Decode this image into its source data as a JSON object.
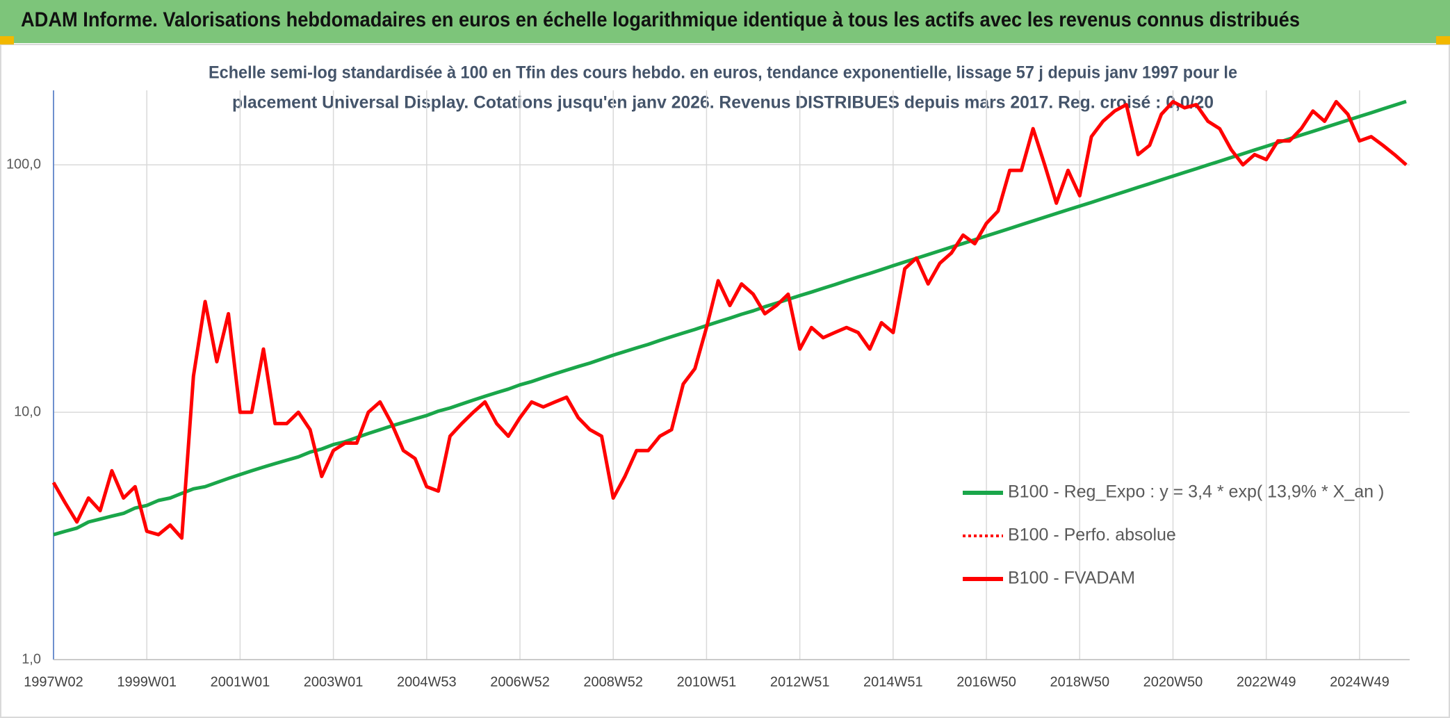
{
  "title": "ADAM Informe. Valorisations hebdomadaires en euros en échelle logarithmique identique à tous les actifs avec les revenus connus distribués",
  "chart_data": {
    "type": "line",
    "subtitle": [
      "Echelle semi-log standardisée à 100 en Tfin des cours hebdo. en euros, tendance exponentielle, lissage 57 j depuis janv 1997 pour le",
      "placement Universal Display. Cotations jusqu'en janv 2026. Revenus DISTRIBUES depuis mars 2017. Reg. croisé : 0,0/20"
    ],
    "log_scale": true,
    "grid": true,
    "ylim": [
      1,
      200
    ],
    "yticks": [
      {
        "value": 1,
        "label": "1,0"
      },
      {
        "value": 10,
        "label": "10,0"
      },
      {
        "value": 100,
        "label": "100,0"
      }
    ],
    "categories": [
      "1997W02",
      null,
      null,
      null,
      null,
      null,
      null,
      null,
      "1999W01",
      null,
      null,
      null,
      null,
      null,
      null,
      null,
      "2001W01",
      null,
      null,
      null,
      null,
      null,
      null,
      null,
      "2003W01",
      null,
      null,
      null,
      null,
      null,
      null,
      null,
      "2004W53",
      null,
      null,
      null,
      null,
      null,
      null,
      null,
      "2006W52",
      null,
      null,
      null,
      null,
      null,
      null,
      null,
      "2008W52",
      null,
      null,
      null,
      null,
      null,
      null,
      null,
      "2010W51",
      null,
      null,
      null,
      null,
      null,
      null,
      null,
      "2012W51",
      null,
      null,
      null,
      null,
      null,
      null,
      null,
      "2014W51",
      null,
      null,
      null,
      null,
      null,
      null,
      null,
      "2016W50",
      null,
      null,
      null,
      null,
      null,
      null,
      null,
      "2018W50",
      null,
      null,
      null,
      null,
      null,
      null,
      null,
      "2020W50",
      null,
      null,
      null,
      null,
      null,
      null,
      null,
      "2022W49",
      null,
      null,
      null,
      null,
      null,
      null,
      null,
      "2024W49",
      null,
      null,
      null,
      null
    ],
    "series": [
      {
        "name": "B100 - Reg_Expo : y = 3,4 * exp( 13,9% *  X_an )",
        "color": "#1aa64a",
        "style": "solid",
        "values": [
          3.2,
          3.3,
          3.4,
          3.6,
          3.7,
          3.8,
          3.9,
          4.1,
          4.2,
          4.4,
          4.5,
          4.7,
          4.9,
          5.0,
          5.2,
          5.4,
          5.6,
          5.8,
          6.0,
          6.2,
          6.4,
          6.6,
          6.9,
          7.1,
          7.4,
          7.6,
          7.9,
          8.2,
          8.5,
          8.8,
          9.1,
          9.4,
          9.7,
          10.1,
          10.4,
          10.8,
          11.2,
          11.6,
          12.0,
          12.4,
          12.9,
          13.3,
          13.8,
          14.3,
          14.8,
          15.3,
          15.8,
          16.4,
          17.0,
          17.6,
          18.2,
          18.8,
          19.5,
          20.2,
          20.9,
          21.6,
          22.4,
          23.2,
          24.0,
          24.9,
          25.7,
          26.7,
          27.6,
          28.6,
          29.6,
          30.6,
          31.7,
          32.8,
          34.0,
          35.2,
          36.4,
          37.7,
          39.1,
          40.5,
          41.9,
          43.4,
          44.9,
          46.5,
          48.1,
          49.8,
          51.6,
          53.4,
          55.3,
          57.3,
          59.3,
          61.4,
          63.6,
          65.8,
          68.1,
          70.5,
          73.0,
          75.6,
          78.3,
          81.1,
          83.9,
          86.9,
          90.0,
          93.2,
          96.4,
          99.9,
          103.4,
          107.1,
          110.8,
          114.8,
          118.8,
          123.0,
          127.4,
          131.9,
          136.5,
          141.4,
          146.4,
          151.5,
          156.9,
          162.4,
          168.2,
          174.1,
          180.3
        ]
      },
      {
        "name": "B100 - Perfo. absolue",
        "color": "#ff0000",
        "style": "dotted",
        "values": [
          5.2,
          4.3,
          3.6,
          4.5,
          4.0,
          5.8,
          4.5,
          5.0,
          3.3,
          3.2,
          3.5,
          3.1,
          14,
          28,
          16,
          25,
          10,
          10,
          18,
          9,
          9,
          10,
          8.5,
          5.5,
          7,
          7.5,
          7.5,
          10,
          11,
          9,
          7,
          6.5,
          5,
          4.8,
          8,
          9,
          10,
          11,
          9,
          8,
          9.5,
          11,
          10.5,
          11,
          11.5,
          9.5,
          8.5,
          8,
          4.5,
          5.5,
          7,
          7,
          8,
          8.5,
          13,
          15,
          22,
          34,
          27,
          33,
          30,
          25,
          27,
          30,
          18,
          22,
          20,
          21,
          22,
          21,
          18,
          23,
          21,
          38,
          42,
          33,
          40,
          44,
          52,
          48,
          58,
          65,
          95,
          95,
          140,
          100,
          70,
          95,
          75,
          130,
          150,
          165,
          175,
          110,
          120,
          160,
          180,
          170,
          175,
          150,
          140,
          115,
          100,
          110,
          105,
          125,
          125,
          140,
          165,
          150,
          180,
          160,
          125,
          130,
          120,
          110,
          100
        ]
      },
      {
        "name": "B100 - FVADAM",
        "color": "#ff0000",
        "style": "solid",
        "values": [
          5.2,
          4.3,
          3.6,
          4.5,
          4.0,
          5.8,
          4.5,
          5.0,
          3.3,
          3.2,
          3.5,
          3.1,
          14,
          28,
          16,
          25,
          10,
          10,
          18,
          9,
          9,
          10,
          8.5,
          5.5,
          7,
          7.5,
          7.5,
          10,
          11,
          9,
          7,
          6.5,
          5,
          4.8,
          8,
          9,
          10,
          11,
          9,
          8,
          9.5,
          11,
          10.5,
          11,
          11.5,
          9.5,
          8.5,
          8,
          4.5,
          5.5,
          7,
          7,
          8,
          8.5,
          13,
          15,
          22,
          34,
          27,
          33,
          30,
          25,
          27,
          30,
          18,
          22,
          20,
          21,
          22,
          21,
          18,
          23,
          21,
          38,
          42,
          33,
          40,
          44,
          52,
          48,
          58,
          65,
          95,
          95,
          140,
          100,
          70,
          95,
          75,
          130,
          150,
          165,
          175,
          110,
          120,
          160,
          180,
          170,
          175,
          150,
          140,
          115,
          100,
          110,
          105,
          125,
          125,
          140,
          165,
          150,
          180,
          160,
          125,
          130,
          120,
          110,
          100
        ]
      }
    ]
  }
}
